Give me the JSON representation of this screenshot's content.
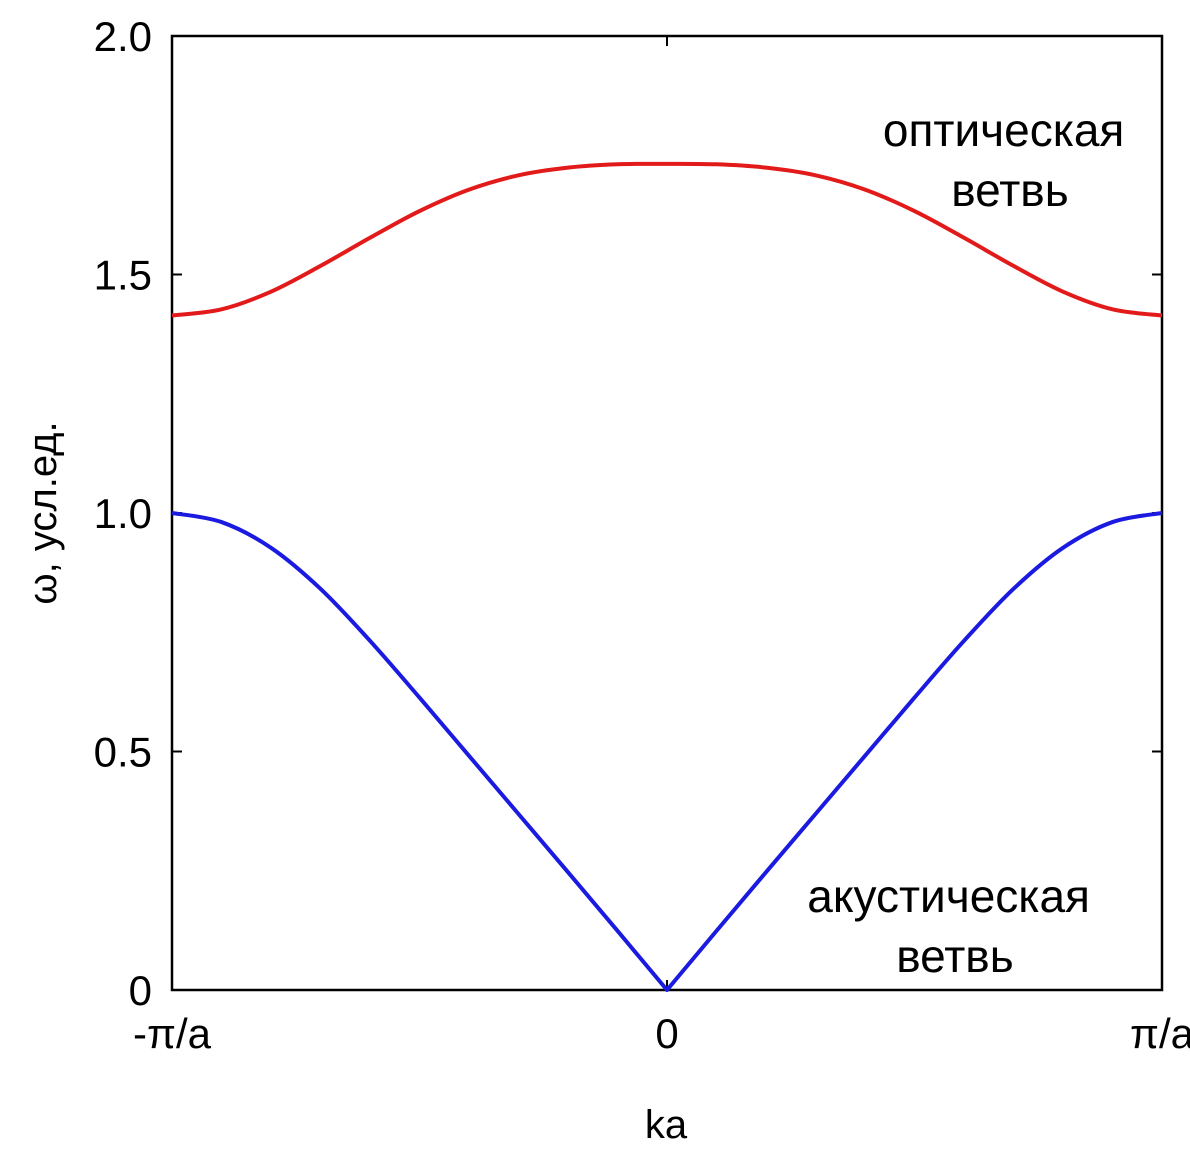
{
  "chart_data": {
    "type": "line",
    "xlabel": "ka",
    "ylabel": "ω, усл.ед.",
    "xlim": [
      -3.14159,
      3.14159
    ],
    "ylim": [
      0,
      2
    ],
    "x_ticks": [
      {
        "value": -3.14159,
        "label": "-π/a"
      },
      {
        "value": 0,
        "label": "0"
      },
      {
        "value": 3.14159,
        "label": "π/a"
      }
    ],
    "y_ticks": [
      {
        "value": 0,
        "label": "0"
      },
      {
        "value": 0.5,
        "label": "0.5"
      },
      {
        "value": 1.0,
        "label": "1.0"
      },
      {
        "value": 1.5,
        "label": "1.5"
      },
      {
        "value": 2.0,
        "label": "2.0"
      }
    ],
    "grid": false,
    "series": [
      {
        "color": "#e31a1a",
        "x": [
          -3.14159,
          -2.82743,
          -2.51327,
          -2.19911,
          -1.88496,
          -1.5708,
          -1.25664,
          -0.94248,
          -0.62832,
          -0.31416,
          0,
          0.31416,
          0.62832,
          0.94248,
          1.25664,
          1.5708,
          1.88496,
          2.19911,
          2.51327,
          2.82743,
          3.14159
        ],
        "values": [
          1.414,
          1.427,
          1.464,
          1.518,
          1.577,
          1.633,
          1.678,
          1.708,
          1.724,
          1.731,
          1.732,
          1.731,
          1.724,
          1.708,
          1.678,
          1.633,
          1.577,
          1.518,
          1.464,
          1.427,
          1.414
        ]
      },
      {
        "color": "#1a1ae0",
        "x": [
          -3.14159,
          -2.82743,
          -2.51327,
          -2.19911,
          -1.88496,
          -1.5708,
          -1.25664,
          -0.94248,
          -0.62832,
          -0.31416,
          0,
          0.31416,
          0.62832,
          0.94248,
          1.25664,
          1.5708,
          1.88496,
          2.19911,
          2.51327,
          2.82743,
          3.14159
        ],
        "values": [
          1.0,
          0.981,
          0.927,
          0.841,
          0.732,
          0.613,
          0.491,
          0.369,
          0.247,
          0.124,
          0.0,
          0.124,
          0.247,
          0.369,
          0.491,
          0.613,
          0.732,
          0.841,
          0.927,
          0.981,
          1.0
        ]
      }
    ],
    "annotations": [
      {
        "lines": [
          "оптическая",
          "ветвь"
        ]
      },
      {
        "lines": [
          "акустическая",
          "ветвь"
        ]
      }
    ]
  }
}
